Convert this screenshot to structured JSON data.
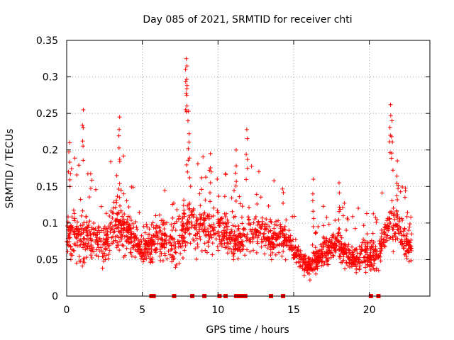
{
  "chart_data": {
    "type": "scatter",
    "title": "Day 085 of 2021, SRMTID for receiver chti",
    "xlabel": "GPS time / hours",
    "ylabel": "SRMTID / TECUs",
    "xlim": [
      0,
      24
    ],
    "ylim": [
      0,
      0.35
    ],
    "x_ticks": [
      0,
      5,
      10,
      15,
      20
    ],
    "x_tick_labels": [
      "0",
      "5",
      "10",
      "15",
      "20"
    ],
    "y_ticks": [
      0,
      0.05,
      0.1,
      0.15,
      0.2,
      0.25,
      0.3,
      0.35
    ],
    "y_tick_labels": [
      "0",
      "0.05",
      "0.1",
      "0.15",
      "0.2",
      "0.25",
      "0.3",
      "0.35"
    ],
    "grid": true,
    "marker": "plus",
    "color": "#ff0000",
    "data_coverage_hours": [
      0,
      22.8
    ],
    "profile": {
      "description": "approximate envelope of the dense point cloud (SRMTID vs hour)",
      "hours": [
        0.0,
        0.5,
        1.0,
        1.5,
        2.0,
        2.5,
        3.0,
        3.5,
        4.0,
        4.5,
        5.0,
        5.5,
        6.0,
        6.5,
        7.0,
        7.5,
        8.0,
        8.5,
        9.0,
        9.5,
        10.0,
        10.5,
        11.0,
        11.5,
        12.0,
        12.5,
        13.0,
        13.5,
        14.0,
        14.5,
        15.0,
        15.5,
        16.0,
        16.5,
        17.0,
        17.5,
        18.0,
        18.5,
        19.0,
        19.5,
        20.0,
        20.5,
        21.0,
        21.5,
        22.0,
        22.5,
        22.8
      ],
      "median": [
        0.085,
        0.08,
        0.075,
        0.08,
        0.08,
        0.07,
        0.085,
        0.1,
        0.09,
        0.075,
        0.06,
        0.07,
        0.075,
        0.075,
        0.07,
        0.08,
        0.11,
        0.1,
        0.09,
        0.085,
        0.09,
        0.085,
        0.08,
        0.075,
        0.085,
        0.09,
        0.085,
        0.08,
        0.08,
        0.075,
        0.065,
        0.05,
        0.04,
        0.05,
        0.06,
        0.065,
        0.07,
        0.055,
        0.05,
        0.06,
        0.055,
        0.05,
        0.085,
        0.1,
        0.09,
        0.075,
        0.065
      ],
      "spread": [
        0.04,
        0.045,
        0.045,
        0.035,
        0.03,
        0.03,
        0.045,
        0.045,
        0.035,
        0.03,
        0.025,
        0.03,
        0.03,
        0.035,
        0.035,
        0.04,
        0.05,
        0.045,
        0.04,
        0.035,
        0.035,
        0.035,
        0.035,
        0.03,
        0.035,
        0.035,
        0.03,
        0.03,
        0.03,
        0.025,
        0.02,
        0.02,
        0.02,
        0.02,
        0.025,
        0.025,
        0.03,
        0.025,
        0.025,
        0.03,
        0.025,
        0.025,
        0.03,
        0.035,
        0.035,
        0.025,
        0.02
      ]
    },
    "peaks": [
      {
        "x": 0.2,
        "y": 0.21
      },
      {
        "x": 1.1,
        "y": 0.255
      },
      {
        "x": 3.5,
        "y": 0.245
      },
      {
        "x": 7.9,
        "y": 0.325
      },
      {
        "x": 7.95,
        "y": 0.315
      },
      {
        "x": 8.05,
        "y": 0.253
      },
      {
        "x": 9.5,
        "y": 0.195
      },
      {
        "x": 11.2,
        "y": 0.2
      },
      {
        "x": 11.9,
        "y": 0.228
      },
      {
        "x": 16.3,
        "y": 0.16
      },
      {
        "x": 18.0,
        "y": 0.155
      },
      {
        "x": 21.4,
        "y": 0.262
      },
      {
        "x": 21.5,
        "y": 0.24
      },
      {
        "x": 21.85,
        "y": 0.185
      }
    ],
    "zero_markers_hours": [
      5.6,
      5.75,
      7.1,
      8.3,
      9.1,
      10.1,
      10.5,
      11.2,
      11.4,
      11.6,
      11.8,
      13.5,
      14.3,
      20.1,
      20.6
    ]
  }
}
